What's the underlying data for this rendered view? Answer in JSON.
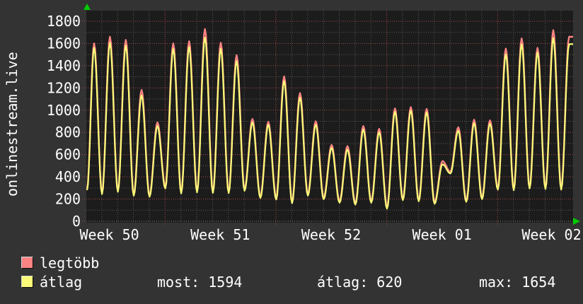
{
  "page": {
    "background": "#333333"
  },
  "chart": {
    "title_vertical": "onlinestream.live",
    "plot_bg": "#1c1c1c",
    "grid_minor_color": "#585858",
    "grid_major_color": "#a84848",
    "axis_arrow_color": "#00cc00",
    "text_color": "#ffffff"
  },
  "legend": {
    "series": [
      {
        "label": "legtöbb",
        "color": "#fb8383"
      },
      {
        "label": "átlag",
        "color": "#fafa78"
      }
    ],
    "stats": [
      "most: 1594",
      "átlag: 620",
      "max: 1654"
    ]
  },
  "chart_data": {
    "type": "line",
    "title": "onlinestream.live",
    "x_tick_labels": [
      "Week 50",
      "Week 51",
      "Week 52",
      "Week 01",
      "Week 02"
    ],
    "y_ticks": [
      0,
      200,
      400,
      600,
      800,
      1000,
      1200,
      1400,
      1600,
      1800
    ],
    "ylim": [
      0,
      1890
    ],
    "grid": true,
    "legend_position": "bottom",
    "x_unit": "days",
    "stats": {
      "most": 1594,
      "atlag": 620,
      "max": 1654
    },
    "series": [
      {
        "name": "legtöbb",
        "color": "#fb8383",
        "peaks": [
          1600,
          1660,
          1632,
          1182,
          890,
          1600,
          1620,
          1730,
          1606,
          1494,
          921,
          895,
          1303,
          1154,
          900,
          687,
          677,
          857,
          832,
          1016,
          1027,
          1011,
          541,
          846,
          914,
          908,
          1554,
          1645,
          1560,
          1720,
          1660
        ],
        "troughs": [
          295,
          260,
          280,
          245,
          236,
          310,
          265,
          275,
          270,
          268,
          289,
          225,
          210,
          178,
          246,
          214,
          182,
          165,
          182,
          129,
          205,
          195,
          172,
          445,
          190,
          215,
          300,
          295,
          310,
          305,
          300
        ]
      },
      {
        "name": "átlag",
        "color": "#fafa78",
        "peaks": [
          1560,
          1606,
          1579,
          1133,
          857,
          1551,
          1568,
          1654,
          1551,
          1441,
          889,
          868,
          1261,
          1112,
          868,
          660,
          645,
          825,
          800,
          984,
          995,
          979,
          513,
          814,
          882,
          877,
          1501,
          1592,
          1518,
          1650,
          1594
        ],
        "troughs": [
          280,
          245,
          265,
          230,
          221,
          295,
          250,
          260,
          255,
          253,
          274,
          210,
          195,
          163,
          231,
          199,
          167,
          150,
          167,
          114,
          190,
          180,
          157,
          430,
          175,
          200,
          285,
          280,
          295,
          290,
          285
        ]
      }
    ]
  }
}
